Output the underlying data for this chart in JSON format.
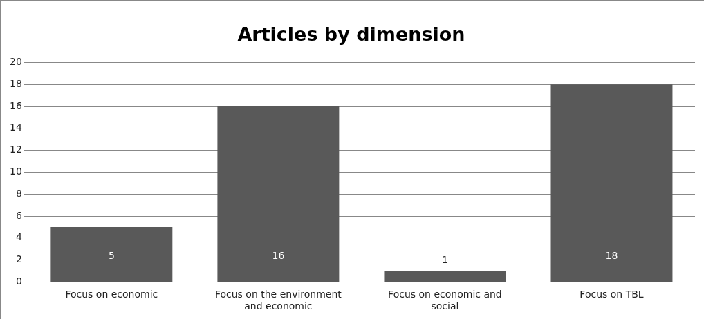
{
  "chart_data": {
    "type": "bar",
    "title": "Articles by dimension",
    "categories": [
      "Focus on economic",
      "Focus on the environment and economic",
      "Focus on economic and social",
      "Focus on TBL"
    ],
    "values": [
      5,
      16,
      1,
      18
    ],
    "color": "#595959",
    "ylim": [
      0,
      20
    ],
    "yticks": [
      0,
      2,
      4,
      6,
      8,
      10,
      12,
      14,
      16,
      18,
      20
    ],
    "grid": "y",
    "data_labels": true
  }
}
